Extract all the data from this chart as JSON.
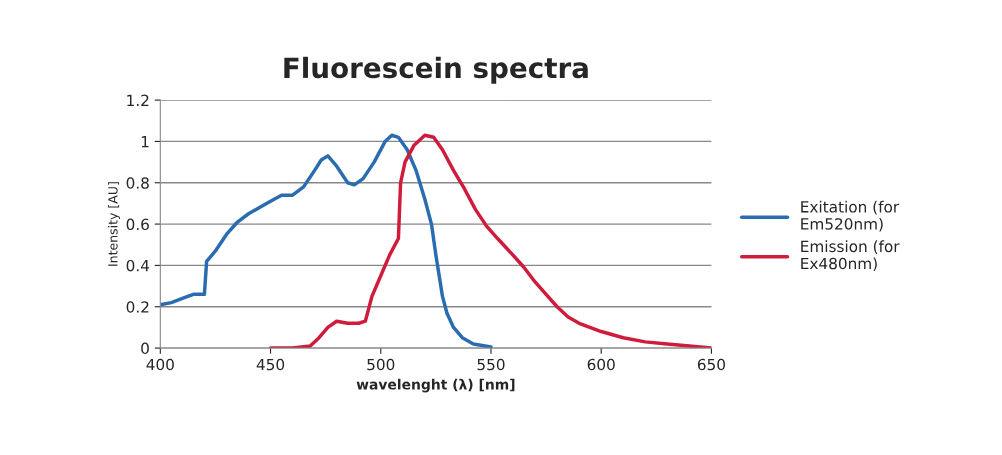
{
  "chart_data": {
    "type": "line",
    "title": "Fluorescein spectra",
    "xlabel": "wavelenght (λ) [nm]",
    "ylabel": "Intensity [AU]",
    "xlim": [
      400,
      650
    ],
    "xticks": [
      400,
      450,
      500,
      550,
      600,
      650
    ],
    "ylim": [
      0,
      1.2
    ],
    "yticks": [
      0,
      0.2,
      0.4,
      0.6,
      0.8,
      1,
      1.2
    ],
    "grid": "y",
    "legend": "right",
    "marker": "none",
    "line_style": "solid",
    "series": [
      {
        "name": "Exitation (for\nEm520nm)",
        "color": "#2a6cb0",
        "x": [
          400,
          405,
          410,
          415,
          420,
          421,
          425,
          430,
          435,
          440,
          445,
          450,
          455,
          460,
          465,
          470,
          473,
          476,
          480,
          485,
          488,
          492,
          497,
          502,
          505,
          508,
          512,
          516,
          520,
          523,
          525,
          528,
          530,
          533,
          537,
          542,
          550
        ],
        "values": [
          0.21,
          0.22,
          0.24,
          0.26,
          0.26,
          0.42,
          0.47,
          0.55,
          0.61,
          0.65,
          0.68,
          0.71,
          0.74,
          0.74,
          0.78,
          0.86,
          0.91,
          0.93,
          0.88,
          0.8,
          0.79,
          0.82,
          0.9,
          1.0,
          1.03,
          1.02,
          0.96,
          0.86,
          0.72,
          0.6,
          0.45,
          0.25,
          0.17,
          0.1,
          0.05,
          0.02,
          0.005
        ]
      },
      {
        "name": "Emission (for\nEx480nm)",
        "color": "#d01c3c",
        "x": [
          450,
          460,
          468,
          472,
          476,
          480,
          485,
          490,
          493,
          496,
          500,
          504,
          508,
          509,
          511,
          515,
          520,
          524,
          528,
          533,
          538,
          543,
          548,
          553,
          560,
          565,
          570,
          575,
          580,
          585,
          590,
          600,
          610,
          620,
          630,
          640,
          650
        ],
        "values": [
          0,
          0,
          0.01,
          0.05,
          0.1,
          0.13,
          0.12,
          0.12,
          0.13,
          0.25,
          0.35,
          0.45,
          0.53,
          0.8,
          0.9,
          0.98,
          1.03,
          1.02,
          0.96,
          0.86,
          0.77,
          0.67,
          0.59,
          0.53,
          0.45,
          0.39,
          0.32,
          0.26,
          0.2,
          0.15,
          0.12,
          0.08,
          0.05,
          0.03,
          0.02,
          0.01,
          0
        ]
      }
    ]
  }
}
